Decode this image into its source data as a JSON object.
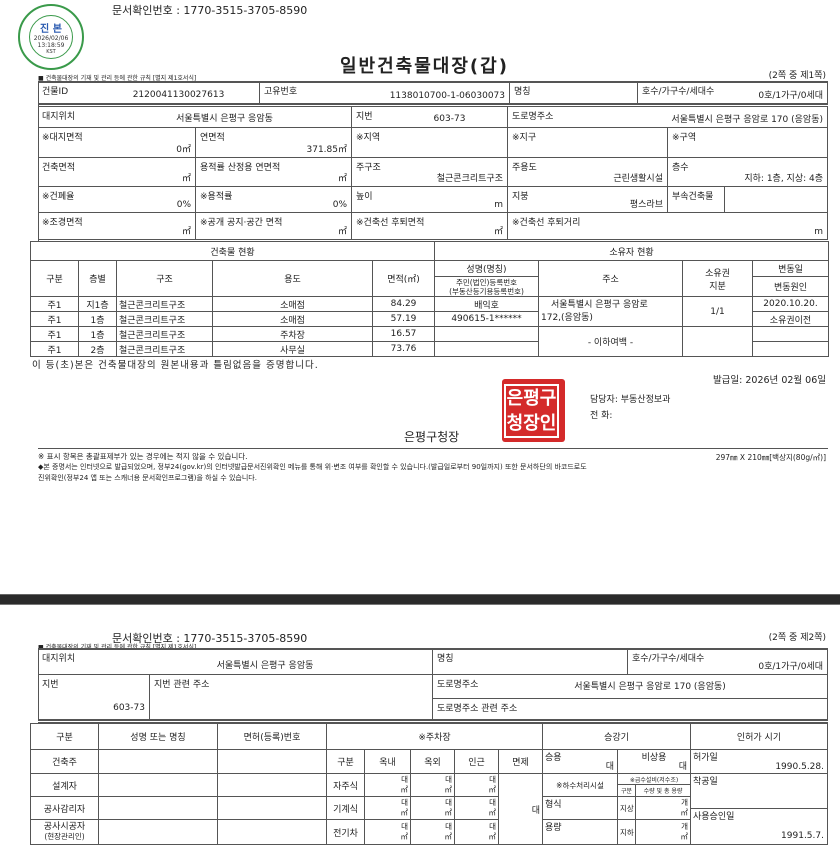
{
  "doc_confirm_number": "문서확인번호 : 1770-3515-3705-8590",
  "verification_stamp": {
    "top": "시청확인필",
    "center": "진 본",
    "date": "2026/02/06",
    "time": "13:18:59",
    "tz": "KST",
    "bottom": "정부시청확인센터",
    "color": "#3a9a4a"
  },
  "form_ref": "■ 건축물대장의 기재 및 관리 등에 관한 규칙 [별지 제1호서식]",
  "title": "일반건축물대장(갑)",
  "page1_of": "(2쪽 중 제1쪽)",
  "page2_of": "(2쪽 중 제2쪽)",
  "summary": {
    "building_id_label": "건물ID",
    "building_id": "2120041130027613",
    "unique_no_label": "고유번호",
    "unique_no": "1138010700-1-06030073",
    "name_label": "명칭",
    "name": "",
    "units_label": "호수/가구수/세대수",
    "units": "0호/1가구/0세대",
    "site_label": "대지위치",
    "site": "서울특별시 은평구 응암동",
    "lot_label": "지번",
    "lot": "603-73",
    "road_label": "도로명주소",
    "road": "서울특별시 은평구 응암로 170 (응암동)",
    "site_area_label": "※대지면적",
    "site_area": "0㎡",
    "total_area_label": "연면적",
    "total_area": "371.85㎡",
    "zone_label": "※지역",
    "district_label": "※지구",
    "area_label": "※구역",
    "building_area_label": "건축면적",
    "building_area": "㎡",
    "far_area_label": "용적률 산정용 연면적",
    "far_area": "㎡",
    "structure_label": "주구조",
    "structure": "철근콘크리트구조",
    "use_label": "주용도",
    "use": "근린생활시설",
    "floors_label": "층수",
    "floors": "지하: 1층, 지상: 4층",
    "bcr_label": "※건폐율",
    "bcr": "0%",
    "far_label": "※용적률",
    "far": "0%",
    "height_label": "높이",
    "height": "m",
    "roof_label": "지붕",
    "roof": "평스라브",
    "annex_label": "부속건축물",
    "landscape_label": "※조경면적",
    "landscape": "㎡",
    "open_space_label": "※공개 공지·공간 면적",
    "open_space": "㎡",
    "setback_area_label": "※건축선 후퇴면적",
    "setback_area": "㎡",
    "setback_dist_label": "※건축선 후퇴거리",
    "setback_dist": "m"
  },
  "building_status": {
    "title": "건축물 현황",
    "headers": [
      "구분",
      "층별",
      "구조",
      "용도",
      "면적(㎡)"
    ],
    "rows": [
      [
        "주1",
        "지1층",
        "철근콘크리트구조",
        "소매점",
        "84.29"
      ],
      [
        "주1",
        "1층",
        "철근콘크리트구조",
        "소매점",
        "57.19"
      ],
      [
        "주1",
        "1층",
        "철근콘크리트구조",
        "주차장",
        "16.57"
      ],
      [
        "주1",
        "2층",
        "철근콘크리트구조",
        "사무실",
        "73.76"
      ]
    ]
  },
  "owner_status": {
    "title": "소유자 현황",
    "h_name": "성명(명칭)",
    "h_id1": "주민(법인)등록번호",
    "h_id2": "(부동산등기용등록번호)",
    "h_addr": "주소",
    "h_share1": "소유권",
    "h_share2": "지분",
    "h_date": "변동일",
    "h_cause": "변동원인",
    "owner_name": "배익호",
    "owner_id": "490615-1******",
    "owner_addr1": "서울특별시 은평구 응암로",
    "owner_addr2": "172,(응암동)",
    "share": "1/1",
    "change_date": "2020.10.20.",
    "change_cause": "소유권이전",
    "blank_note": "- 이하여백 -"
  },
  "certify": "이 등(초)본은 건축물대장의 원본내용과 틀림없음을 증명합니다.",
  "issue_date": "발급일: 2026년 02월 06일",
  "official_seal": {
    "text": "은평구청장인",
    "color": "#d42a2a"
  },
  "issuer": "은평구청장",
  "contact_dept": "담당자:  부동산정보과",
  "contact_phone": "전   화:",
  "footnote1": "※ 표시 항목은 총괄표제부가 있는 경우에는 적지 않을 수 있습니다.",
  "paper_size": "297㎜ X 210㎜[백상지(80g/㎡)]",
  "footnote2": "◆본 증명서는 인터넷으로 발급되었으며, 정부24(gov.kr)의 인터넷발급문서진위확인 메뉴를 통해 위·변조 여부를 확인할 수 있습니다.(발급일로부터 90일까지) 또한 문서하단의 바코드로도",
  "footnote3": "진위확인(정부24 앱 또는 스캐너용 문서확인프로그램)을 하실 수 있습니다.",
  "page2": {
    "lot_addr_label": "지번 관련 주소",
    "road_addr_label": "도로명주소 관련 주소",
    "people_headers": [
      "구분",
      "성명 또는 명칭",
      "면허(등록)번호"
    ],
    "people_rows": [
      "건축주",
      "설계자",
      "공사감리자",
      "공사시공자"
    ],
    "people_sub": "(현장관리인)",
    "parking_title": "※주차장",
    "parking_headers": [
      "구분",
      "옥내",
      "옥외",
      "인근",
      "면제"
    ],
    "parking_rows": [
      "자주식",
      "기계식",
      "전기차"
    ],
    "unit_cars": "대",
    "unit_sqm": "㎡",
    "elevator_title": "승강기",
    "elev_passenger": "승용",
    "elev_emergency": "비상용",
    "sewage": "※하수처리시설",
    "sewage_type": "형식",
    "sewage_cap": "용량",
    "water": "※급수설비(저수조)",
    "water_h1": "구분",
    "water_h2": "수량 및 총 용량",
    "above": "지상",
    "below": "지하",
    "unit_ea": "개",
    "permit_title": "인허가 시기",
    "permit_label": "허가일",
    "permit_date": "1990.5.28.",
    "start_label": "착공일",
    "approval_label": "사용승인일",
    "approval_date": "1991.5.7."
  }
}
